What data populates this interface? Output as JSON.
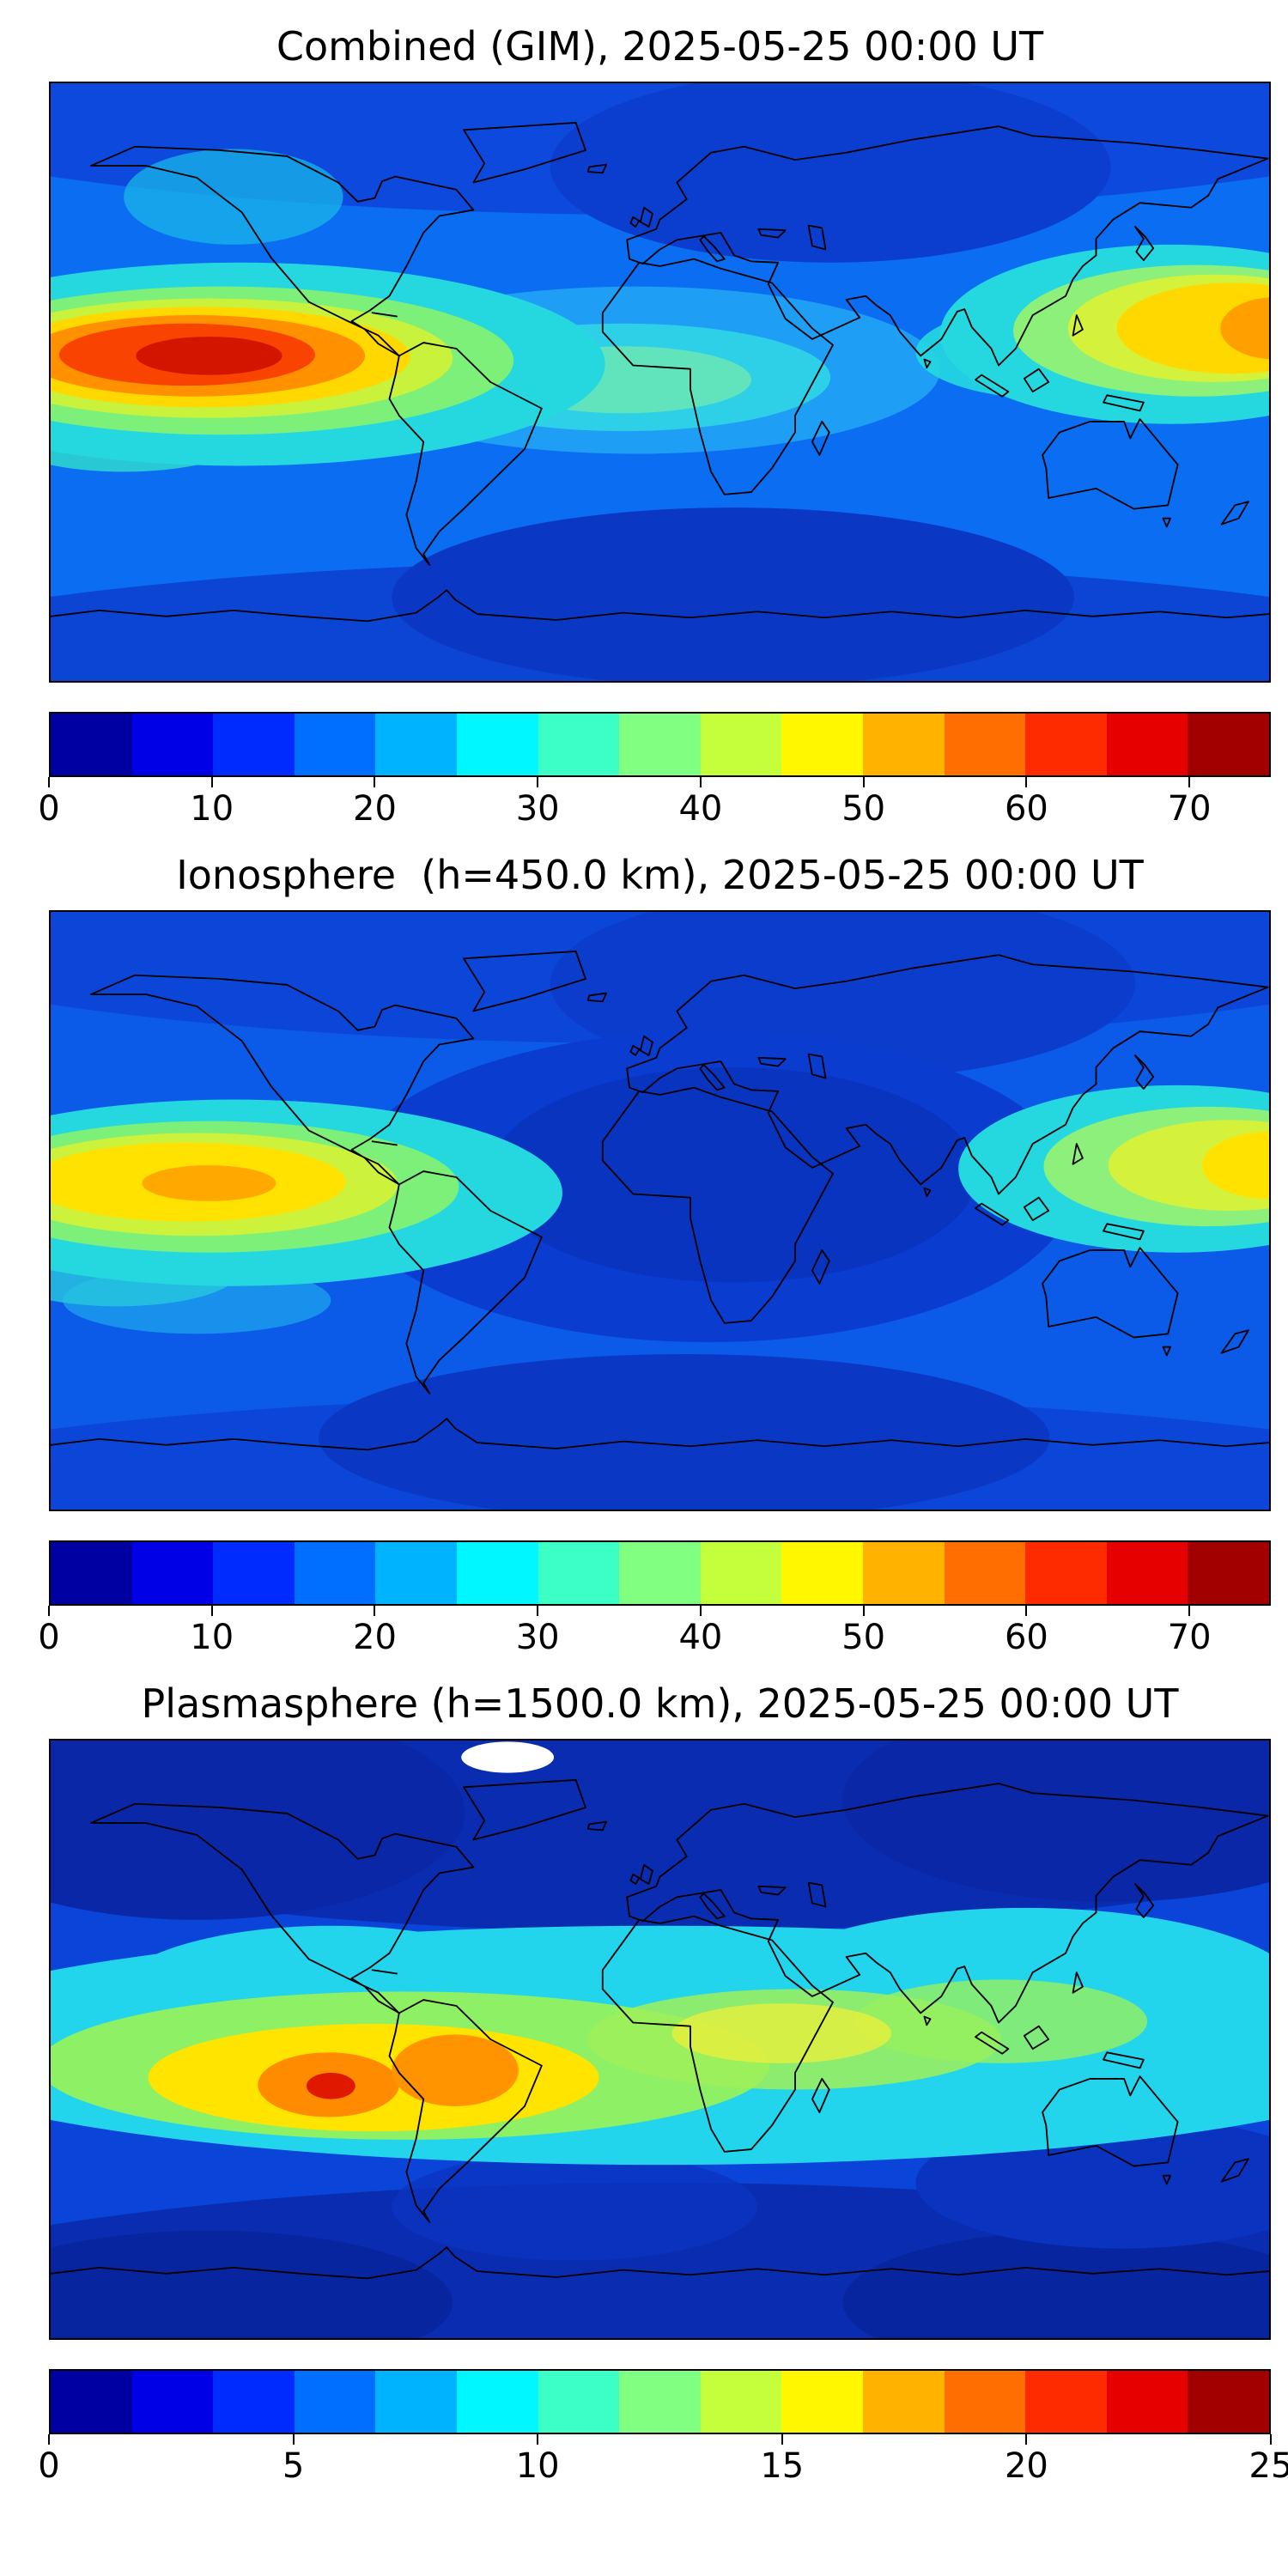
{
  "styles": {
    "coastline_color": "#000000",
    "page_background": "#ffffff"
  },
  "figure": {
    "colormap": {
      "name": "jet",
      "colors": [
        "#0000a2",
        "#0000e6",
        "#002bff",
        "#006eff",
        "#00b3ff",
        "#00f7ff",
        "#3bffc4",
        "#80ff80",
        "#c4ff3b",
        "#fff700",
        "#ffb300",
        "#ff6e00",
        "#ff2b00",
        "#e60000",
        "#a20000"
      ]
    },
    "panels": [
      {
        "title": "Combined (GIM), 2025-05-25 00:00 UT",
        "colorbar": {
          "min": 0,
          "max": 75,
          "ticks": [
            "0",
            "10",
            "20",
            "30",
            "40",
            "50",
            "60",
            "70"
          ],
          "tick_values": [
            0,
            10,
            20,
            30,
            40,
            50,
            60,
            70
          ]
        }
      },
      {
        "title": "Ionosphere  (h=450.0 km), 2025-05-25 00:00 UT",
        "colorbar": {
          "min": 0,
          "max": 75,
          "ticks": [
            "0",
            "10",
            "20",
            "30",
            "40",
            "50",
            "60",
            "70"
          ],
          "tick_values": [
            0,
            10,
            20,
            30,
            40,
            50,
            60,
            70
          ]
        }
      },
      {
        "title": "Plasmasphere (h=1500.0 km), 2025-05-25 00:00 UT",
        "colorbar": {
          "min": 0,
          "max": 25,
          "ticks": [
            "0",
            "5",
            "10",
            "15",
            "20",
            "25"
          ],
          "tick_values": [
            0,
            5,
            10,
            15,
            20,
            25
          ]
        }
      }
    ]
  },
  "chart_data": [
    {
      "type": "heatmap",
      "title": "Combined (GIM), 2025-05-25 00:00 UT",
      "colormap": "jet",
      "value_range": [
        0,
        75
      ],
      "colorbar_ticks": [
        0,
        10,
        20,
        30,
        40,
        50,
        60,
        70
      ],
      "projection": "equirectangular world map, lon -180..180, lat -90..90",
      "grid": false,
      "estimated_features": [
        {
          "label": "primary TEC maximum, central equatorial Pacific",
          "lon": -140,
          "lat": 8,
          "value": 72
        },
        {
          "label": "secondary maximum, western Pacific near Japan/Philippine Sea",
          "lon": 168,
          "lat": 16,
          "value": 55
        },
        {
          "label": "equatorial cyan-green band flanking maxima",
          "value": "30-45"
        },
        {
          "label": "mid-latitude background",
          "value": "15-25"
        },
        {
          "label": "high-latitude / southern Indian Ocean minimum",
          "value": "5-12"
        }
      ]
    },
    {
      "type": "heatmap",
      "title": "Ionosphere  (h=450.0 km), 2025-05-25 00:00 UT",
      "colormap": "jet",
      "value_range": [
        0,
        75
      ],
      "colorbar_ticks": [
        0,
        10,
        20,
        30,
        40,
        50,
        60,
        70
      ],
      "projection": "equirectangular world map, lon -180..180, lat -90..90",
      "grid": false,
      "estimated_features": [
        {
          "label": "primary maximum, central equatorial Pacific",
          "lon": -145,
          "lat": 8,
          "value": 55
        },
        {
          "label": "secondary maximum, western Pacific near Japan",
          "lon": 172,
          "lat": 14,
          "value": 48
        },
        {
          "label": "broad minimum over Africa / Indian Ocean sector",
          "value": "5-10"
        },
        {
          "label": "mid-latitude background",
          "value": "10-20"
        }
      ]
    },
    {
      "type": "heatmap",
      "title": "Plasmasphere (h=1500.0 km), 2025-05-25 00:00 UT",
      "colormap": "jet",
      "value_range": [
        0,
        25
      ],
      "colorbar_ticks": [
        0,
        5,
        10,
        15,
        20,
        25
      ],
      "projection": "equirectangular world map, lon -180..180, lat -90..90",
      "grid": false,
      "estimated_features": [
        {
          "label": "primary maximum, eastern Pacific off Peru",
          "lon": -98,
          "lat": -14,
          "value": 24
        },
        {
          "label": "secondary maximum, central South America",
          "lon": -61,
          "lat": -10,
          "value": 22
        },
        {
          "label": "wavy cyan-green band across low/mid latitudes",
          "value": "10-16"
        },
        {
          "label": "dark polar bands north and south",
          "value": "2-6"
        },
        {
          "label": "small white patch near northern Greenland (out-of-range / no data)",
          "lon": -45,
          "lat": 83,
          "value": null
        }
      ]
    }
  ]
}
